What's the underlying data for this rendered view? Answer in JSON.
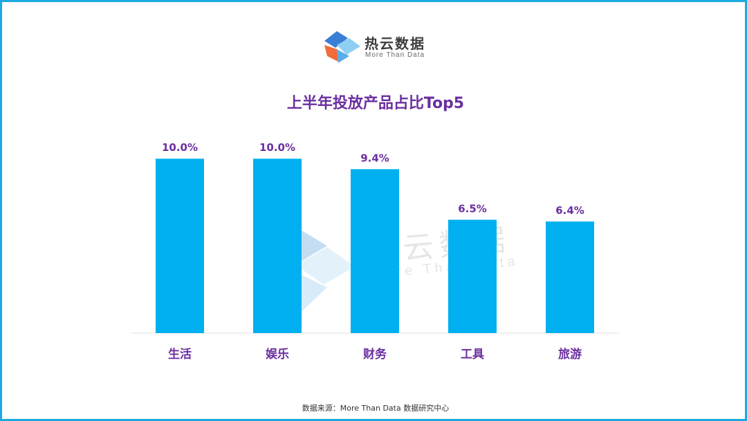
{
  "brand": {
    "name": "热云数据",
    "tagline": "More Than Data"
  },
  "colors": {
    "bar": "#00b0f0",
    "title": "#6b2fa0",
    "label": "#6b2fa0",
    "frame": "#1aa9e0"
  },
  "chart_data": {
    "type": "bar",
    "title": "上半年投放产品占比Top5",
    "categories": [
      "生活",
      "娱乐",
      "财务",
      "工具",
      "旅游"
    ],
    "values": [
      10.0,
      10.0,
      9.4,
      6.5,
      6.4
    ],
    "value_labels": [
      "10.0%",
      "10.0%",
      "9.4%",
      "6.5%",
      "6.4%"
    ],
    "ylim": [
      0,
      11.2
    ],
    "grid": false,
    "legend": "none"
  },
  "source_note": "数据来源：More Than Data 数据研究中心"
}
